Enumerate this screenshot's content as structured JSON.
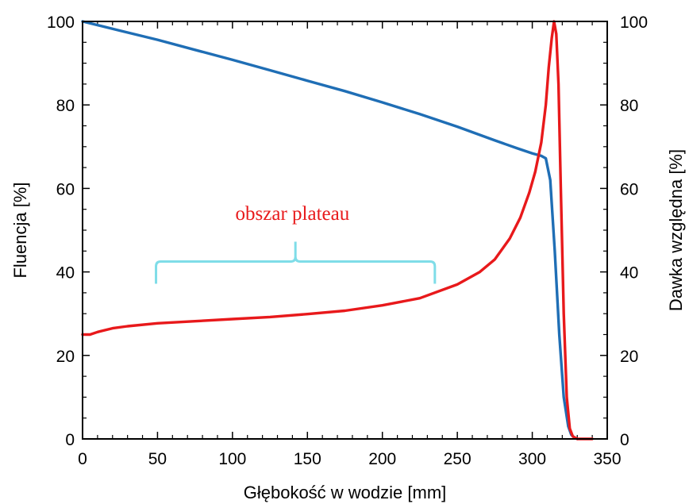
{
  "chart_data": {
    "type": "line",
    "xlabel": "Głębokość w wodzie [mm]",
    "ylabel_left": "Fluencja [%]",
    "ylabel_right": "Dawka względna [%]",
    "xlim": [
      0,
      350
    ],
    "ylim_left": [
      0,
      100
    ],
    "ylim_right": [
      0,
      100
    ],
    "x_ticks": [
      0,
      50,
      100,
      150,
      200,
      250,
      300,
      350
    ],
    "y_ticks": [
      0,
      20,
      40,
      60,
      80,
      100
    ],
    "grid": false,
    "series": [
      {
        "color": "#1f6eb5",
        "axis": "left",
        "x": [
          0,
          25,
          50,
          75,
          100,
          125,
          150,
          175,
          200,
          225,
          250,
          275,
          290,
          300,
          306,
          309,
          312,
          315,
          318,
          321,
          324,
          326,
          328,
          330
        ],
        "y": [
          100,
          97.8,
          95.6,
          93.2,
          90.8,
          88.3,
          85.8,
          83.3,
          80.6,
          77.8,
          74.8,
          71.5,
          69.6,
          68.4,
          67.8,
          67.2,
          62,
          45,
          25,
          10,
          3,
          1,
          0.3,
          0
        ]
      },
      {
        "color": "#e8191b",
        "axis": "right",
        "x": [
          0,
          5,
          10,
          20,
          30,
          50,
          75,
          100,
          125,
          150,
          175,
          200,
          225,
          250,
          265,
          275,
          285,
          292,
          298,
          302,
          306,
          309,
          311,
          313,
          314.5,
          316,
          317.5,
          319,
          321,
          323,
          325,
          327,
          330,
          335,
          340
        ],
        "y": [
          25,
          25,
          25.6,
          26.5,
          27,
          27.7,
          28.2,
          28.7,
          29.2,
          29.9,
          30.7,
          32,
          33.7,
          37,
          40,
          43,
          48,
          53,
          59,
          64,
          71,
          80,
          89,
          96,
          100,
          97,
          85,
          60,
          30,
          10,
          2.5,
          0.6,
          0,
          0,
          0
        ]
      }
    ],
    "annotations": [
      {
        "text": "obszar plateau",
        "color": "#e8191b",
        "x": 140,
        "y": 54
      }
    ],
    "brace": {
      "color": "#7fdde8",
      "x_start": 49,
      "x_end": 235,
      "y": 42.5
    }
  }
}
